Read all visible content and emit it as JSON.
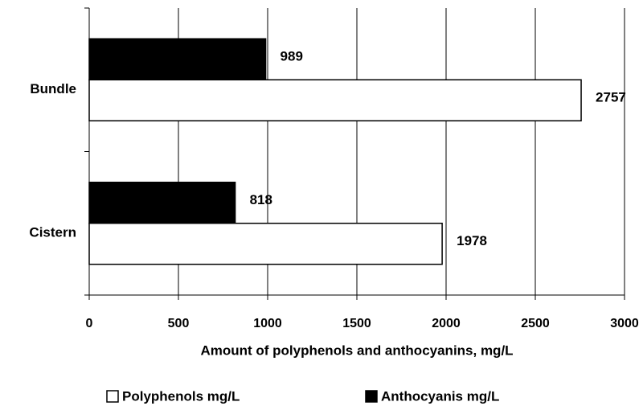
{
  "chart_data": {
    "type": "hbar",
    "categories": [
      "Bundle",
      "Cistern"
    ],
    "series": [
      {
        "name": "Polyphenols mg/L",
        "color": "#ffffff",
        "values": [
          2757,
          1978
        ]
      },
      {
        "name": "Anthocyanis mg/L",
        "color": "#000000",
        "values": [
          989,
          818
        ]
      }
    ],
    "xlabel": "Amount of polyphenols and anthocyanins, mg/L",
    "xlim": [
      0,
      3000
    ],
    "xticks": [
      0,
      500,
      1000,
      1500,
      2000,
      2500,
      3000
    ],
    "grid": true,
    "legend": "bottom"
  }
}
